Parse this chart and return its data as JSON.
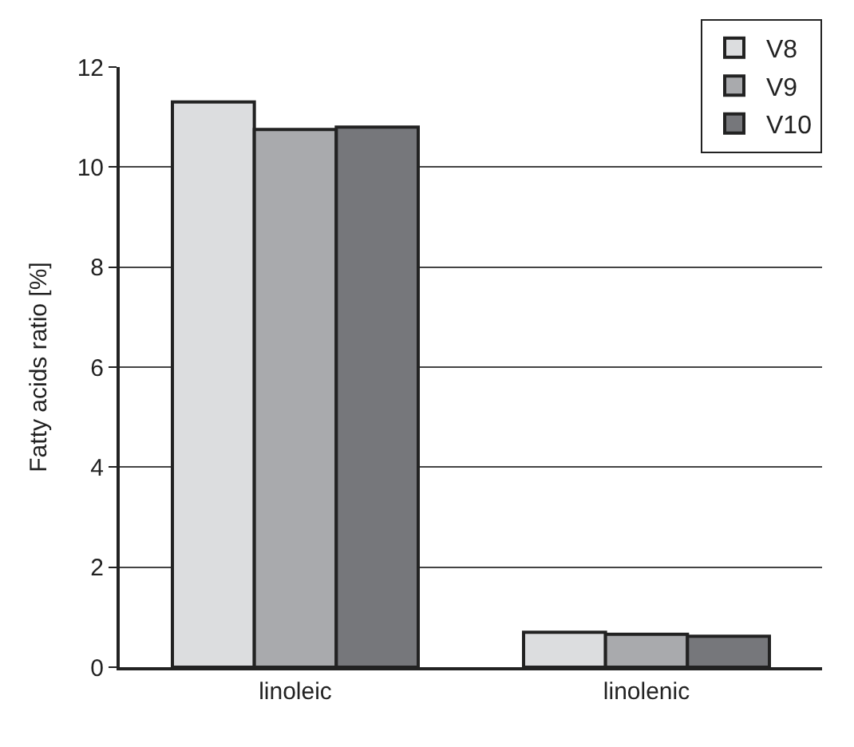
{
  "chart_data": {
    "type": "bar",
    "ylabel": "Fatty acids ratio [%]",
    "categories": [
      "linoleic",
      "linolenic"
    ],
    "series": [
      {
        "name": "V8",
        "color": "#dcdddf",
        "values": [
          11.3,
          0.7
        ]
      },
      {
        "name": "V9",
        "color": "#a9aaad",
        "values": [
          10.75,
          0.66
        ]
      },
      {
        "name": "V10",
        "color": "#76777b",
        "values": [
          10.8,
          0.62
        ]
      }
    ],
    "ylim": [
      0,
      12
    ],
    "yticks": [
      0,
      2,
      4,
      6,
      8,
      10,
      12
    ],
    "grid": "y",
    "legend": "top right"
  }
}
